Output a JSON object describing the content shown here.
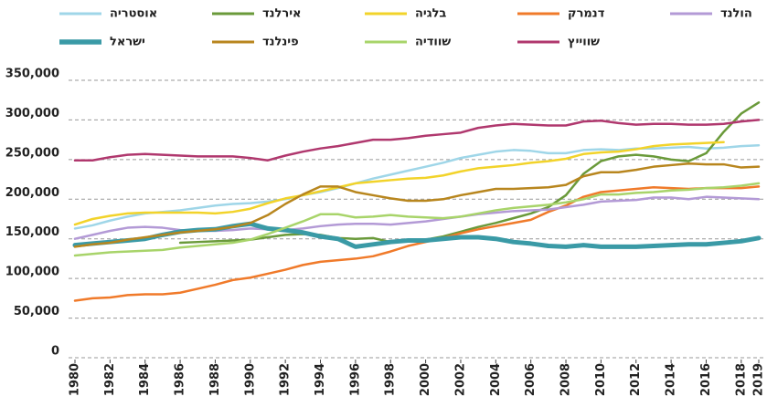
{
  "chart_data": {
    "type": "line",
    "x": [
      1980,
      1981,
      1982,
      1983,
      1984,
      1985,
      1986,
      1987,
      1988,
      1989,
      1990,
      1991,
      1992,
      1993,
      1994,
      1995,
      1996,
      1997,
      1998,
      1999,
      2000,
      2001,
      2002,
      2003,
      2004,
      2005,
      2006,
      2007,
      2008,
      2009,
      2010,
      2011,
      2012,
      2013,
      2014,
      2015,
      2016,
      2017,
      2018,
      2019
    ],
    "xlim": [
      1980,
      2019
    ],
    "xticks": [
      1980,
      1982,
      1984,
      1986,
      1988,
      1990,
      1992,
      1994,
      1996,
      1998,
      2000,
      2002,
      2004,
      2006,
      2008,
      2010,
      2012,
      2014,
      2016,
      2018,
      2019
    ],
    "ylim": [
      0,
      350000
    ],
    "yticks": [
      0,
      {
        "value": 50000,
        "label": "50,000"
      },
      {
        "value": 100000,
        "label": "100,000"
      },
      {
        "value": 150000,
        "label": "150,000"
      },
      {
        "value": 200000,
        "label": "200,000"
      },
      {
        "value": 250000,
        "label": "250,000"
      },
      {
        "value": 300000,
        "label": "300,000"
      },
      {
        "value": 350000,
        "label": "350,000"
      }
    ],
    "grid": true,
    "series": [
      {
        "name": "אוסטריה",
        "color": "#9fd6e8",
        "line_width": 2.5,
        "values": [
          163000,
          167000,
          173000,
          178000,
          182000,
          184000,
          186000,
          189000,
          192000,
          194000,
          195000,
          197000,
          200000,
          205000,
          209000,
          214000,
          220000,
          226000,
          231000,
          236000,
          241000,
          246000,
          252000,
          256000,
          260000,
          262000,
          261000,
          258000,
          258000,
          262000,
          263000,
          262000,
          264000,
          264000,
          265000,
          266000,
          264000,
          265000,
          267000,
          268000
        ]
      },
      {
        "name": "אירלנד",
        "color": "#6a9a3a",
        "line_width": 2.5,
        "values": [
          null,
          null,
          null,
          null,
          null,
          null,
          145000,
          146000,
          147000,
          148000,
          149000,
          152000,
          155000,
          156000,
          155000,
          151000,
          150000,
          151000,
          146000,
          147000,
          149000,
          153000,
          159000,
          165000,
          170000,
          176000,
          182000,
          190000,
          205000,
          232000,
          248000,
          254000,
          256000,
          254000,
          250000,
          248000,
          258000,
          285000,
          308000,
          322000
        ]
      },
      {
        "name": "בלגיה",
        "color": "#f2d32a",
        "line_width": 2.5,
        "values": [
          168000,
          175000,
          179000,
          182000,
          183000,
          183000,
          183000,
          183000,
          182000,
          184000,
          188000,
          195000,
          201000,
          205000,
          210000,
          215000,
          220000,
          222000,
          224000,
          226000,
          227000,
          230000,
          235000,
          239000,
          241000,
          243000,
          246000,
          248000,
          251000,
          257000,
          259000,
          260000,
          263000,
          267000,
          269000,
          270000,
          271000,
          272000,
          null,
          null
        ]
      },
      {
        "name": "דנמרק",
        "color": "#f07a2a",
        "line_width": 2.5,
        "values": [
          72000,
          75000,
          76000,
          79000,
          80000,
          80000,
          82000,
          87000,
          92000,
          98000,
          101000,
          106000,
          111000,
          117000,
          121000,
          123000,
          125000,
          128000,
          134000,
          141000,
          146000,
          151000,
          157000,
          162000,
          166000,
          170000,
          174000,
          184000,
          192000,
          203000,
          209000,
          211000,
          213000,
          215000,
          214000,
          213000,
          214000,
          214000,
          214000,
          216000
        ]
      },
      {
        "name": "הולנד",
        "color": "#b39ad6",
        "line_width": 2.5,
        "values": [
          150000,
          155000,
          160000,
          164000,
          165000,
          164000,
          161000,
          160000,
          160000,
          161000,
          163000,
          162000,
          161000,
          163000,
          166000,
          168000,
          169000,
          169000,
          168000,
          170000,
          172000,
          175000,
          178000,
          181000,
          183000,
          185000,
          186000,
          187000,
          190000,
          193000,
          197000,
          198000,
          199000,
          202000,
          202000,
          200000,
          203000,
          202000,
          201000,
          200000
        ]
      },
      {
        "name": "ישראל",
        "color": "#3a9aa6",
        "line_width": 5,
        "values": [
          142000,
          144000,
          146000,
          148000,
          150000,
          155000,
          159000,
          161000,
          162000,
          166000,
          169000,
          163000,
          161000,
          158000,
          153000,
          150000,
          140000,
          143000,
          146000,
          148000,
          148000,
          150000,
          152000,
          152000,
          150000,
          146000,
          144000,
          141000,
          140000,
          142000,
          140000,
          140000,
          140000,
          141000,
          142000,
          143000,
          143000,
          145000,
          147000,
          151000
        ]
      },
      {
        "name": "פינלנד",
        "color": "#b8861e",
        "line_width": 2.5,
        "values": [
          140000,
          143000,
          145000,
          149000,
          152000,
          155000,
          158000,
          160000,
          162000,
          165000,
          170000,
          180000,
          194000,
          206000,
          216000,
          216000,
          209000,
          205000,
          201000,
          198000,
          198000,
          200000,
          205000,
          209000,
          213000,
          213000,
          214000,
          215000,
          218000,
          229000,
          234000,
          234000,
          237000,
          241000,
          243000,
          245000,
          244000,
          244000,
          240000,
          241000
        ]
      },
      {
        "name": "שוודיה",
        "color": "#a8d46a",
        "line_width": 2.5,
        "values": [
          129000,
          131000,
          133000,
          134000,
          135000,
          136000,
          139000,
          141000,
          143000,
          145000,
          149000,
          156000,
          164000,
          172000,
          181000,
          181000,
          177000,
          178000,
          180000,
          178000,
          177000,
          176000,
          178000,
          182000,
          186000,
          189000,
          191000,
          193000,
          196000,
          200000,
          206000,
          206000,
          208000,
          209000,
          211000,
          212000,
          214000,
          215000,
          217000,
          220000
        ]
      },
      {
        "name": "שווייץ",
        "color": "#b0386e",
        "line_width": 2.5,
        "values": [
          249000,
          249000,
          253000,
          256000,
          257000,
          256000,
          255000,
          254000,
          254000,
          254000,
          252000,
          249000,
          255000,
          260000,
          264000,
          267000,
          271000,
          275000,
          275000,
          277000,
          280000,
          282000,
          284000,
          290000,
          293000,
          295000,
          294000,
          293000,
          293000,
          298000,
          299000,
          296000,
          294000,
          295000,
          295000,
          294000,
          294000,
          295000,
          298000,
          300000
        ]
      }
    ]
  }
}
